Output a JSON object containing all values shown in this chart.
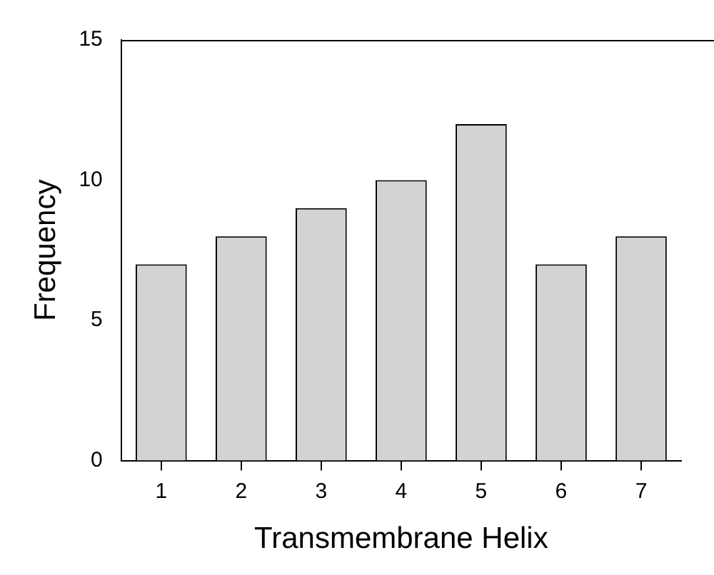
{
  "chart_data": {
    "type": "bar",
    "xlabel": "Transmembrane Helix",
    "ylabel": "Frequency",
    "categories": [
      "1",
      "2",
      "3",
      "4",
      "5",
      "6",
      "7"
    ],
    "values": [
      7,
      8,
      9,
      10,
      12,
      7,
      8
    ],
    "color": "#d3d3d3",
    "ylim": [
      0,
      15
    ],
    "yticks": [
      0,
      5,
      10,
      15
    ],
    "grid": false,
    "legend": false
  }
}
